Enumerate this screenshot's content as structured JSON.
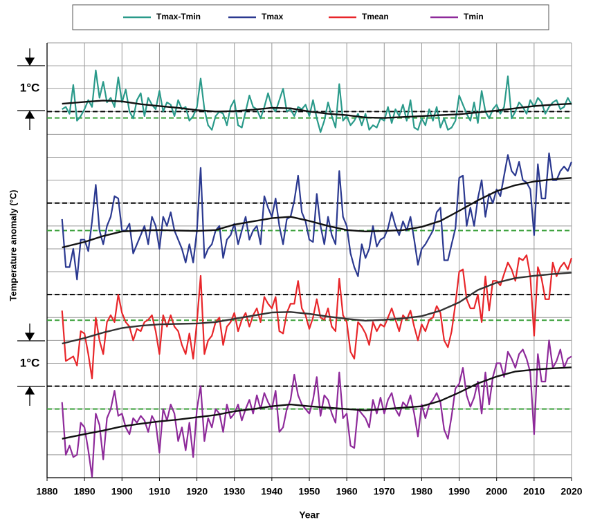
{
  "chart_data": {
    "type": "line",
    "xlabel": "Year",
    "ylabel": "Temperature anomaly (°C)",
    "scale_label": "1°C",
    "legend": "top",
    "grid": true,
    "xlim": [
      1880,
      2020
    ],
    "xticks": [
      1880,
      1890,
      1900,
      1910,
      1920,
      1930,
      1940,
      1950,
      1960,
      1970,
      1980,
      1990,
      2000,
      2010,
      2020
    ],
    "x": [
      1884,
      1885,
      1886,
      1887,
      1888,
      1889,
      1890,
      1891,
      1892,
      1893,
      1894,
      1895,
      1896,
      1897,
      1898,
      1899,
      1900,
      1901,
      1902,
      1903,
      1904,
      1905,
      1906,
      1907,
      1908,
      1909,
      1910,
      1911,
      1912,
      1913,
      1914,
      1915,
      1916,
      1917,
      1918,
      1919,
      1920,
      1921,
      1922,
      1923,
      1924,
      1925,
      1926,
      1927,
      1928,
      1929,
      1930,
      1931,
      1932,
      1933,
      1934,
      1935,
      1936,
      1937,
      1938,
      1939,
      1940,
      1941,
      1942,
      1943,
      1944,
      1945,
      1946,
      1947,
      1948,
      1949,
      1950,
      1951,
      1952,
      1953,
      1954,
      1955,
      1956,
      1957,
      1958,
      1959,
      1960,
      1961,
      1962,
      1963,
      1964,
      1965,
      1966,
      1967,
      1968,
      1969,
      1970,
      1971,
      1972,
      1973,
      1974,
      1975,
      1976,
      1977,
      1978,
      1979,
      1980,
      1981,
      1982,
      1983,
      1984,
      1985,
      1986,
      1987,
      1988,
      1989,
      1990,
      1991,
      1992,
      1993,
      1994,
      1995,
      1996,
      1997,
      1998,
      1999,
      2000,
      2001,
      2002,
      2003,
      2004,
      2005,
      2006,
      2007,
      2008,
      2009,
      2010,
      2011,
      2012,
      2013,
      2014,
      2015,
      2016,
      2017,
      2018,
      2019,
      2020
    ],
    "x_smooth": [
      1884,
      1890,
      1895,
      1900,
      1905,
      1910,
      1915,
      1920,
      1925,
      1930,
      1935,
      1940,
      1945,
      1950,
      1955,
      1960,
      1965,
      1970,
      1975,
      1980,
      1985,
      1990,
      1995,
      2000,
      2005,
      2010,
      2015,
      2020
    ],
    "panels": [
      {
        "ylim": [
          -8,
          1.5
        ],
        "yticks": [
          -8,
          -7.5,
          -7,
          -6.5,
          -6,
          -5.5,
          -5,
          -4.5,
          -4,
          -3.5,
          -3,
          -2.5,
          -2,
          -1.5,
          -1,
          -0.5,
          0,
          0.5,
          1,
          1.5
        ],
        "reference_lines": [
          {
            "value": 0,
            "color": "#000000"
          },
          {
            "value": -0.14,
            "color": "#3aa03a"
          }
        ],
        "series": [
          {
            "name": "Tmax-Tmin",
            "color": "#2a9a8a",
            "values": [
              0.05,
              0.1,
              -0.05,
              0.58,
              -0.2,
              -0.1,
              0.05,
              0.25,
              0.1,
              0.9,
              0.3,
              0.65,
              0.2,
              0.3,
              0.1,
              0.75,
              0.2,
              0.48,
              0.0,
              -0.15,
              0.25,
              0.4,
              -0.1,
              0.3,
              0.15,
              0.05,
              0.45,
              0.0,
              0.2,
              0.15,
              -0.1,
              0.25,
              0.05,
              0.1,
              -0.2,
              -0.1,
              0.1,
              0.72,
              0.05,
              -0.3,
              -0.4,
              -0.1,
              0.0,
              -0.05,
              -0.3,
              0.1,
              0.25,
              -0.3,
              -0.35,
              0.0,
              0.35,
              0.1,
              0.05,
              -0.15,
              0.1,
              0.4,
              0.1,
              0.0,
              0.25,
              0.5,
              0.0,
              0.05,
              -0.1,
              0.1,
              0.05,
              0.15,
              -0.1,
              0.25,
              -0.15,
              -0.45,
              -0.2,
              0.2,
              -0.1,
              -0.35,
              0.6,
              -0.2,
              -0.1,
              -0.3,
              -0.2,
              -0.05,
              -0.3,
              -0.05,
              -0.4,
              -0.3,
              -0.35,
              -0.15,
              -0.2,
              0.1,
              -0.25,
              0.05,
              -0.1,
              0.15,
              -0.2,
              0.25,
              -0.35,
              -0.4,
              -0.15,
              -0.3,
              0.05,
              -0.2,
              0.1,
              -0.35,
              -0.15,
              -0.4,
              -0.35,
              -0.2,
              0.35,
              0.15,
              -0.05,
              -0.2,
              0.2,
              -0.25,
              0.45,
              0.0,
              -0.15,
              0.05,
              0.15,
              -0.05,
              0.1,
              0.77,
              -0.15,
              0.0,
              0.2,
              0.1,
              -0.05,
              0.25,
              0.1,
              0.3,
              0.2,
              -0.05,
              0.1,
              0.2,
              0.25,
              0.05,
              0.1,
              0.3,
              0.15
            ]
          }
        ],
        "smooth": {
          "color": "#111111",
          "values": [
            0.17,
            0.21,
            0.24,
            0.22,
            0.16,
            0.12,
            0.08,
            0.03,
            0.0,
            0.01,
            0.04,
            0.08,
            0.07,
            0.0,
            -0.05,
            -0.08,
            -0.13,
            -0.14,
            -0.12,
            -0.1,
            -0.08,
            -0.06,
            -0.02,
            0.02,
            0.07,
            0.12,
            0.15,
            0.17
          ]
        }
      },
      {
        "ylim": [
          -6,
          3.5
        ],
        "reference_lines": [
          {
            "value": 0,
            "color": "#000000"
          },
          {
            "value": -0.6,
            "color": "#3aa03a"
          }
        ],
        "series": [
          {
            "name": "Tmax",
            "color": "#2b3990",
            "values": [
              -0.35,
              -1.4,
              -1.4,
              -1.0,
              -1.67,
              -0.8,
              -0.8,
              -1.05,
              -0.4,
              0.4,
              -0.6,
              -0.9,
              -0.5,
              -0.3,
              0.15,
              0.1,
              -0.6,
              -0.6,
              -0.45,
              -1.1,
              -0.9,
              -0.7,
              -0.5,
              -0.9,
              -0.3,
              -0.5,
              -1.0,
              -0.3,
              -0.5,
              -0.2,
              -0.6,
              -0.8,
              -1.0,
              -1.3,
              -0.9,
              -1.3,
              -0.6,
              0.77,
              -1.2,
              -1.0,
              -0.9,
              -0.6,
              -0.5,
              -1.2,
              -0.8,
              -0.7,
              -0.45,
              -0.9,
              -0.6,
              -0.3,
              -0.8,
              -0.6,
              -0.5,
              -0.9,
              0.15,
              -0.1,
              -0.3,
              0.1,
              -0.5,
              -0.9,
              -0.35,
              -0.3,
              0.05,
              0.6,
              -0.2,
              -0.4,
              -0.8,
              -0.85,
              0.2,
              -0.5,
              -0.9,
              -0.3,
              -0.7,
              -0.9,
              0.7,
              -0.3,
              -0.5,
              -1.1,
              -1.4,
              -1.6,
              -0.9,
              -1.2,
              -1.0,
              -0.5,
              -0.95,
              -0.8,
              -0.75,
              -0.55,
              -0.2,
              -0.5,
              -0.7,
              -0.4,
              -0.6,
              -0.3,
              -0.8,
              -1.35,
              -1.0,
              -0.9,
              -0.75,
              -0.6,
              -0.2,
              -0.1,
              -1.25,
              -1.25,
              -0.9,
              -0.55,
              0.55,
              0.6,
              -0.5,
              -0.1,
              -0.5,
              0.1,
              0.5,
              -0.3,
              0.2,
              0.0,
              0.3,
              0.15,
              0.6,
              1.05,
              0.7,
              0.6,
              0.9,
              0.5,
              0.45,
              0.3,
              -0.7,
              0.85,
              0.1,
              0.1,
              1.09,
              0.5,
              0.5,
              0.7,
              0.8,
              0.7,
              0.9
            ]
          }
        ],
        "smooth": {
          "color": "#111111",
          "values": [
            -0.97,
            -0.85,
            -0.72,
            -0.62,
            -0.6,
            -0.59,
            -0.6,
            -0.61,
            -0.59,
            -0.47,
            -0.4,
            -0.33,
            -0.3,
            -0.39,
            -0.5,
            -0.59,
            -0.62,
            -0.61,
            -0.59,
            -0.52,
            -0.39,
            -0.17,
            0.06,
            0.26,
            0.39,
            0.47,
            0.52,
            0.55
          ]
        }
      },
      {
        "ylim": [
          -4,
          5.5
        ],
        "reference_lines": [
          {
            "value": 0,
            "color": "#000000"
          },
          {
            "value": -0.56,
            "color": "#3aa03a"
          }
        ],
        "series": [
          {
            "name": "Tmean",
            "color": "#e8262a",
            "values": [
              -0.35,
              -1.45,
              -1.4,
              -1.35,
              -1.55,
              -0.8,
              -0.85,
              -1.3,
              -1.83,
              -0.5,
              -1.0,
              -1.3,
              -0.6,
              -0.45,
              -0.6,
              0.0,
              -0.4,
              -0.6,
              -0.7,
              -1.0,
              -0.75,
              -0.8,
              -0.6,
              -0.55,
              -0.45,
              -0.8,
              -1.3,
              -0.45,
              -0.7,
              -0.45,
              -0.7,
              -0.8,
              -1.1,
              -1.3,
              -0.85,
              -1.4,
              -0.6,
              0.41,
              -1.3,
              -1.0,
              -0.9,
              -0.6,
              -0.5,
              -1.1,
              -0.7,
              -0.6,
              -0.4,
              -0.8,
              -0.55,
              -0.4,
              -0.7,
              -0.45,
              -0.3,
              -0.6,
              -0.05,
              -0.2,
              -0.3,
              -0.05,
              -0.8,
              -0.85,
              -0.4,
              -0.2,
              -0.2,
              0.3,
              -0.3,
              -0.45,
              -0.75,
              -0.5,
              -0.1,
              -0.5,
              -0.55,
              -0.3,
              -0.7,
              -0.8,
              0.35,
              -0.45,
              -0.6,
              -1.25,
              -1.4,
              -0.6,
              -0.7,
              -0.85,
              -1.1,
              -0.6,
              -0.8,
              -0.65,
              -0.7,
              -0.5,
              -0.3,
              -0.55,
              -0.8,
              -0.45,
              -0.55,
              -0.35,
              -0.7,
              -1.0,
              -0.65,
              -0.8,
              -0.55,
              -0.5,
              -0.25,
              -0.4,
              -1.0,
              -1.15,
              -0.8,
              -0.2,
              0.5,
              0.55,
              -0.1,
              -0.3,
              -0.3,
              0.0,
              -0.6,
              0.4,
              -0.35,
              0.3,
              0.3,
              0.2,
              0.45,
              0.7,
              0.55,
              0.3,
              0.8,
              0.75,
              0.86,
              0.4,
              -0.9,
              0.6,
              0.35,
              -0.1,
              -0.1,
              0.7,
              0.4,
              0.6,
              0.7,
              0.55,
              0.8
            ]
          }
        ],
        "smooth": {
          "color": "#333333",
          "values": [
            -1.07,
            -0.95,
            -0.83,
            -0.73,
            -0.68,
            -0.65,
            -0.64,
            -0.63,
            -0.6,
            -0.53,
            -0.46,
            -0.39,
            -0.38,
            -0.42,
            -0.48,
            -0.53,
            -0.57,
            -0.55,
            -0.52,
            -0.47,
            -0.35,
            -0.17,
            0.1,
            0.26,
            0.36,
            0.41,
            0.45,
            0.48
          ]
        }
      },
      {
        "ylim": [
          -2,
          7.5
        ],
        "reference_lines": [
          {
            "value": 0,
            "color": "#000000"
          },
          {
            "value": -0.5,
            "color": "#3aa03a"
          }
        ],
        "series": [
          {
            "name": "Tmin",
            "color": "#8e2a9a",
            "values": [
              -0.35,
              -1.5,
              -1.3,
              -1.55,
              -1.5,
              -0.8,
              -0.9,
              -1.4,
              -1.98,
              -0.6,
              -0.85,
              -1.6,
              -0.7,
              -0.5,
              -0.1,
              -0.65,
              -0.6,
              -0.9,
              -1.05,
              -0.7,
              -0.8,
              -0.65,
              -0.75,
              -1.0,
              -0.65,
              -0.8,
              -1.45,
              -0.5,
              -0.75,
              -0.4,
              -0.6,
              -1.2,
              -0.9,
              -1.4,
              -0.8,
              -1.55,
              -0.5,
              0.0,
              -1.2,
              -0.7,
              -0.9,
              -0.5,
              -0.6,
              -1.0,
              -0.4,
              -0.7,
              -0.6,
              -0.4,
              -0.75,
              -0.5,
              -0.3,
              -0.6,
              -0.2,
              -0.5,
              -0.15,
              -0.35,
              -0.5,
              -0.1,
              -1.0,
              -0.9,
              -0.5,
              -0.3,
              0.25,
              -0.2,
              -0.4,
              -0.5,
              -0.6,
              -0.3,
              0.2,
              -0.65,
              -0.2,
              -0.3,
              -0.6,
              -0.8,
              0.3,
              -0.7,
              -0.6,
              -1.3,
              -1.35,
              -0.5,
              -0.6,
              -0.7,
              -0.9,
              -0.3,
              -0.6,
              -0.25,
              -0.6,
              -0.3,
              -0.15,
              -0.5,
              -0.65,
              -0.35,
              -0.45,
              -0.2,
              -0.6,
              -1.1,
              -0.4,
              -0.7,
              -0.4,
              -0.3,
              -0.15,
              -0.35,
              -0.95,
              -1.15,
              -0.65,
              -0.05,
              0.05,
              0.4,
              -0.2,
              -0.45,
              -0.25,
              0.1,
              -0.6,
              0.3,
              -0.4,
              0.2,
              0.5,
              0.5,
              0.2,
              0.75,
              0.6,
              0.4,
              0.7,
              0.8,
              0.6,
              0.3,
              -1.05,
              0.7,
              0.1,
              0.1,
              1.0,
              0.4,
              0.55,
              0.8,
              0.4,
              0.6,
              0.65
            ]
          }
        ],
        "smooth": {
          "color": "#111111",
          "values": [
            -1.15,
            -1.05,
            -0.97,
            -0.88,
            -0.82,
            -0.77,
            -0.73,
            -0.68,
            -0.63,
            -0.55,
            -0.5,
            -0.44,
            -0.4,
            -0.44,
            -0.47,
            -0.5,
            -0.53,
            -0.5,
            -0.47,
            -0.44,
            -0.32,
            -0.14,
            0.06,
            0.21,
            0.32,
            0.36,
            0.39,
            0.41
          ]
        }
      }
    ]
  }
}
